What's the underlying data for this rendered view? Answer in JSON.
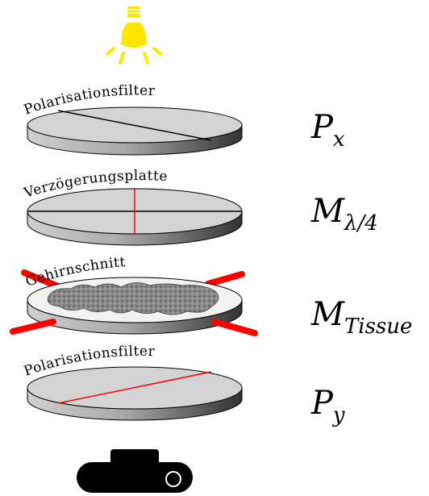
{
  "elements": {
    "light_source": {
      "icon": "lightbulb-icon",
      "color": "#ffe600"
    },
    "layers": [
      {
        "id": "polarizer-x",
        "label": "Polarisationsfilter",
        "symbol_base": "P",
        "symbol_sub": "x"
      },
      {
        "id": "retarder",
        "label": "Verzögerungsplatte",
        "symbol_base": "M",
        "symbol_sub": "λ/4"
      },
      {
        "id": "tissue",
        "label": "Gehirnschnitt",
        "symbol_base": "M",
        "symbol_sub": "Tissue"
      },
      {
        "id": "polarizer-y",
        "label": "Polarisationsfilter",
        "symbol_base": "P",
        "symbol_sub": "y"
      }
    ],
    "detector": {
      "icon": "camera-icon"
    }
  },
  "colors": {
    "disk_top": "#d3d3d3",
    "disk_side_light": "#c8c8c8",
    "disk_side_dark": "#3c3c3c",
    "tissue_top": "#f2f2f2",
    "tissue_pattern": "#7a7a7a",
    "accent_red": "#ff0000",
    "bulb_yellow": "#ffe600",
    "outline": "#000000"
  }
}
